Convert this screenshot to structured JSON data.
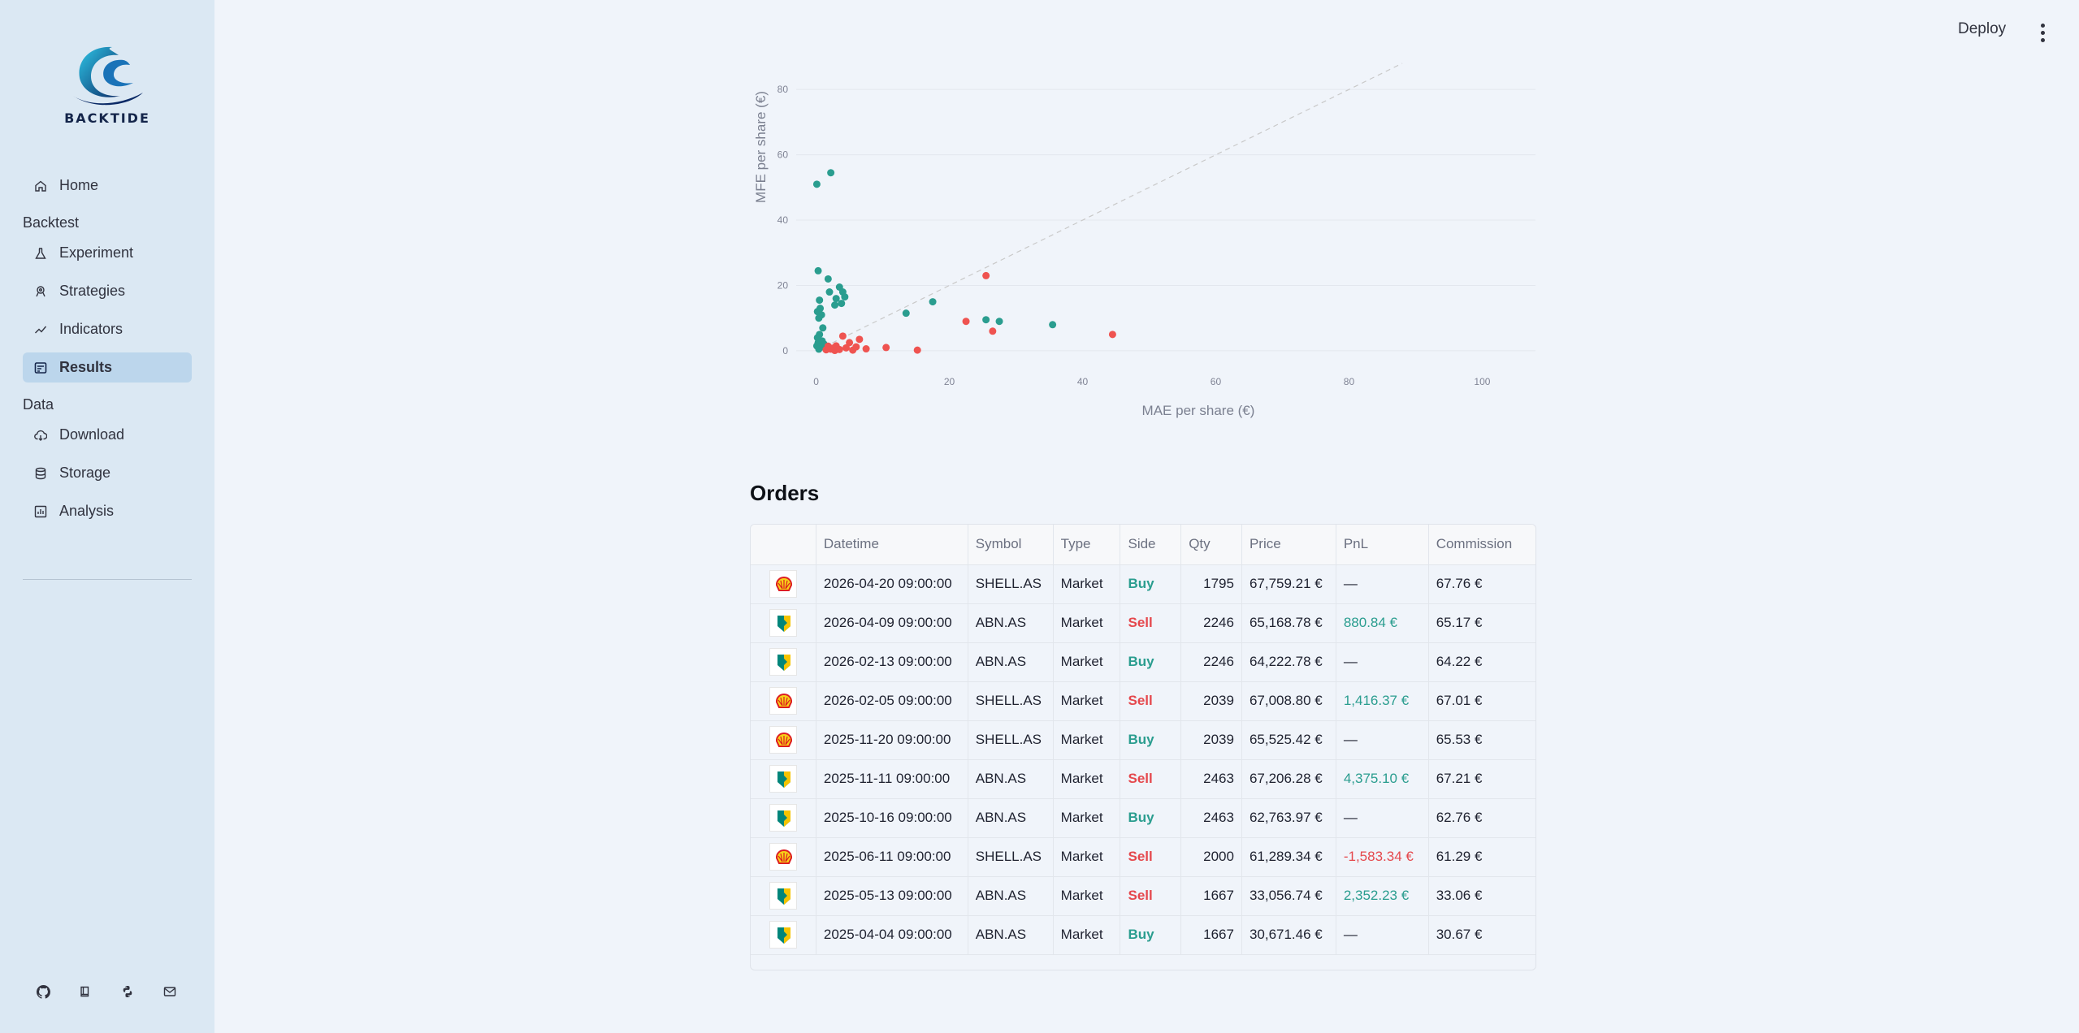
{
  "brand": {
    "name": "BACKTIDE"
  },
  "sidebar": {
    "home": "Home",
    "sections": [
      {
        "title": "Backtest",
        "items": [
          {
            "label": "Experiment",
            "icon": "flask-icon"
          },
          {
            "label": "Strategies",
            "icon": "strategy-icon"
          },
          {
            "label": "Indicators",
            "icon": "trend-line-icon"
          },
          {
            "label": "Results",
            "icon": "results-icon",
            "active": true
          }
        ]
      },
      {
        "title": "Data",
        "items": [
          {
            "label": "Download",
            "icon": "cloud-download-icon"
          },
          {
            "label": "Storage",
            "icon": "database-icon"
          },
          {
            "label": "Analysis",
            "icon": "bar-chart-icon"
          }
        ]
      }
    ],
    "footer_icons": [
      "github-icon",
      "book-icon",
      "python-icon",
      "mail-icon"
    ]
  },
  "header": {
    "deploy_label": "Deploy",
    "menu_icon": "kebab-menu-icon"
  },
  "chart_data": {
    "type": "scatter",
    "title": "",
    "xlabel": "MAE per share (€)",
    "ylabel": "MFE per share (€)",
    "xlim": [
      -3,
      108
    ],
    "ylim": [
      -3,
      88
    ],
    "xticks": [
      0,
      20,
      40,
      60,
      80,
      100
    ],
    "yticks": [
      0,
      20,
      40,
      60,
      80
    ],
    "grid": true,
    "reference_line": {
      "from": [
        0,
        0
      ],
      "to": [
        88,
        88
      ],
      "style": "dashed"
    },
    "colors": {
      "win": "#2a9d8f",
      "loss": "#ef5350"
    },
    "series": [
      {
        "points": [
          [
            0.1,
            51
          ],
          [
            2.2,
            54.5
          ],
          [
            0.3,
            24.5
          ],
          [
            1.8,
            22
          ],
          [
            3.5,
            19.5
          ],
          [
            2.0,
            18
          ],
          [
            4.0,
            18
          ],
          [
            3.0,
            16
          ],
          [
            4.3,
            16.5
          ],
          [
            0.5,
            15.5
          ],
          [
            3.8,
            14.5
          ],
          [
            2.8,
            14
          ],
          [
            0.6,
            13
          ],
          [
            0.2,
            12
          ],
          [
            0.8,
            11
          ],
          [
            0.4,
            10
          ],
          [
            1.0,
            7
          ],
          [
            0.5,
            5
          ],
          [
            0.2,
            4
          ],
          [
            0.9,
            3
          ],
          [
            0.3,
            2.5
          ],
          [
            0.1,
            1.5
          ],
          [
            0.6,
            1
          ],
          [
            1.2,
            2
          ],
          [
            0.4,
            0.5
          ],
          [
            17.5,
            15
          ],
          [
            13.5,
            11.5
          ],
          [
            25.5,
            9.5
          ],
          [
            27.5,
            9
          ],
          [
            35.5,
            8
          ]
        ]
      },
      {
        "points": [
          [
            25.5,
            23
          ],
          [
            22.5,
            9
          ],
          [
            26.5,
            6
          ],
          [
            44.5,
            5
          ],
          [
            15.2,
            0.2
          ],
          [
            10.5,
            1
          ],
          [
            7.5,
            0.6
          ],
          [
            6.5,
            3.5
          ],
          [
            5.0,
            2.5
          ],
          [
            4.0,
            4.5
          ],
          [
            3.0,
            1.5
          ],
          [
            2.2,
            0.5
          ],
          [
            1.5,
            0.3
          ],
          [
            2.5,
            0.8
          ],
          [
            3.5,
            0.4
          ],
          [
            4.5,
            0.9
          ],
          [
            5.5,
            0.2
          ],
          [
            6.0,
            1.2
          ],
          [
            1.8,
            1.4
          ],
          [
            2.8,
            0.1
          ]
        ]
      }
    ]
  },
  "orders": {
    "title": "Orders",
    "columns": [
      "",
      "Datetime",
      "Symbol",
      "Type",
      "Side",
      "Qty",
      "Price",
      "PnL",
      "Commission"
    ],
    "rows": [
      {
        "logo": "shell",
        "datetime": "2026-04-20 09:00:00",
        "symbol": "SHELL.AS",
        "type": "Market",
        "side": "Buy",
        "qty": "1795",
        "price": "67,759.21 €",
        "pnl": "—",
        "commission": "67.76 €"
      },
      {
        "logo": "abn",
        "datetime": "2026-04-09 09:00:00",
        "symbol": "ABN.AS",
        "type": "Market",
        "side": "Sell",
        "qty": "2246",
        "price": "65,168.78 €",
        "pnl": "880.84 €",
        "commission": "65.17 €"
      },
      {
        "logo": "abn",
        "datetime": "2026-02-13 09:00:00",
        "symbol": "ABN.AS",
        "type": "Market",
        "side": "Buy",
        "qty": "2246",
        "price": "64,222.78 €",
        "pnl": "—",
        "commission": "64.22 €"
      },
      {
        "logo": "shell",
        "datetime": "2026-02-05 09:00:00",
        "symbol": "SHELL.AS",
        "type": "Market",
        "side": "Sell",
        "qty": "2039",
        "price": "67,008.80 €",
        "pnl": "1,416.37 €",
        "commission": "67.01 €"
      },
      {
        "logo": "shell",
        "datetime": "2025-11-20 09:00:00",
        "symbol": "SHELL.AS",
        "type": "Market",
        "side": "Buy",
        "qty": "2039",
        "price": "65,525.42 €",
        "pnl": "—",
        "commission": "65.53 €"
      },
      {
        "logo": "abn",
        "datetime": "2025-11-11 09:00:00",
        "symbol": "ABN.AS",
        "type": "Market",
        "side": "Sell",
        "qty": "2463",
        "price": "67,206.28 €",
        "pnl": "4,375.10 €",
        "commission": "67.21 €"
      },
      {
        "logo": "abn",
        "datetime": "2025-10-16 09:00:00",
        "symbol": "ABN.AS",
        "type": "Market",
        "side": "Buy",
        "qty": "2463",
        "price": "62,763.97 €",
        "pnl": "—",
        "commission": "62.76 €"
      },
      {
        "logo": "shell",
        "datetime": "2025-06-11 09:00:00",
        "symbol": "SHELL.AS",
        "type": "Market",
        "side": "Sell",
        "qty": "2000",
        "price": "61,289.34 €",
        "pnl": "-1,583.34 €",
        "commission": "61.29 €"
      },
      {
        "logo": "abn",
        "datetime": "2025-05-13 09:00:00",
        "symbol": "ABN.AS",
        "type": "Market",
        "side": "Sell",
        "qty": "1667",
        "price": "33,056.74 €",
        "pnl": "2,352.23 €",
        "commission": "33.06 €"
      },
      {
        "logo": "abn",
        "datetime": "2025-04-04 09:00:00",
        "symbol": "ABN.AS",
        "type": "Market",
        "side": "Buy",
        "qty": "1667",
        "price": "30,671.46 €",
        "pnl": "—",
        "commission": "30.67 €"
      }
    ]
  }
}
